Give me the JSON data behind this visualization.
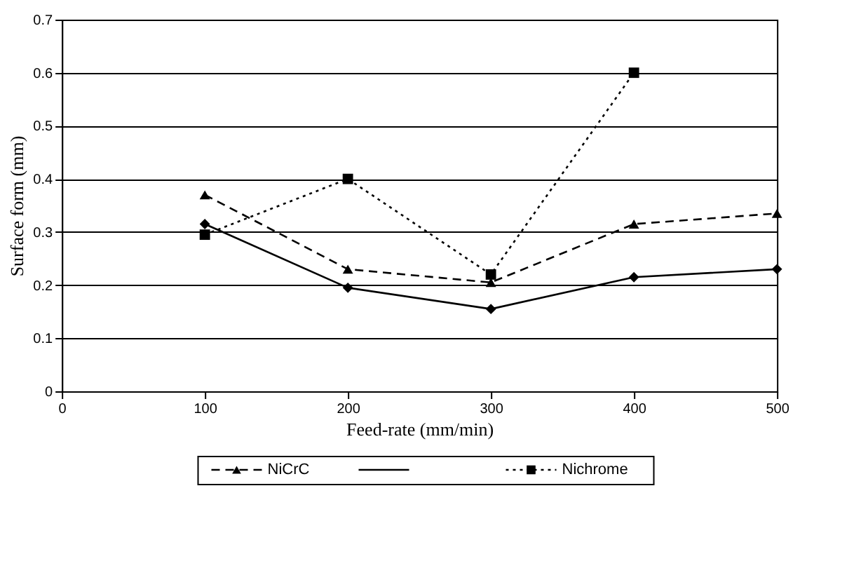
{
  "chart_data": {
    "type": "line",
    "xlabel": "Feed-rate (mm/min)",
    "ylabel": "Surface form (mm)",
    "xlim": [
      0,
      500
    ],
    "xticks": [
      0,
      100,
      200,
      300,
      400,
      500
    ],
    "ylim": [
      0,
      0.7
    ],
    "yticks": [
      0,
      0.1,
      0.2,
      0.3,
      0.4,
      0.5,
      0.6,
      0.7
    ],
    "grid": "y",
    "legend": "bottom",
    "series": [
      {
        "name": "NiCrC",
        "color": "#000000",
        "marker": "triangle",
        "line_style": "dashed",
        "x": [
          100,
          200,
          300,
          400,
          500
        ],
        "values": [
          0.37,
          0.23,
          0.205,
          0.315,
          0.335
        ]
      },
      {
        "color": "#000000",
        "marker": "diamond",
        "line_style": "solid",
        "x": [
          100,
          200,
          300,
          400,
          500
        ],
        "values": [
          0.315,
          0.195,
          0.155,
          0.215,
          0.23
        ]
      },
      {
        "name": "Nichrome",
        "color": "#000000",
        "marker": "square",
        "line_style": "dotted",
        "x": [
          100,
          200,
          300,
          400
        ],
        "values": [
          0.295,
          0.4,
          0.22,
          0.6
        ]
      }
    ]
  }
}
